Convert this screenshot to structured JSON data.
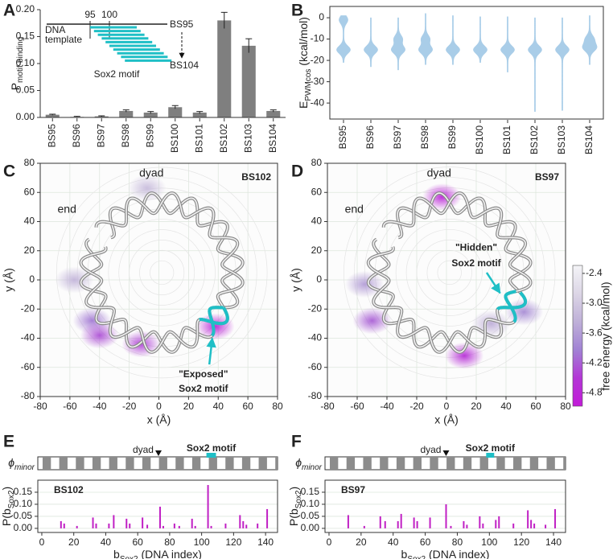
{
  "chart_data": [
    {
      "panel": "A",
      "type": "bar",
      "categories": [
        "BS95",
        "BS96",
        "BS97",
        "BS98",
        "BS99",
        "BS100",
        "BS101",
        "BS102",
        "BS103",
        "BS104"
      ],
      "values": [
        0.005,
        0.001,
        0.002,
        0.012,
        0.009,
        0.019,
        0.009,
        0.18,
        0.133,
        0.012
      ],
      "errors": [
        0.001,
        0.001,
        0.001,
        0.002,
        0.002,
        0.003,
        0.002,
        0.015,
        0.013,
        0.002
      ],
      "color": "#7f7f7f",
      "ylim": [
        0,
        0.2
      ],
      "yticks": [
        {
          "value": 0,
          "label": "0.00"
        },
        {
          "value": 0.05,
          "label": "0.05"
        },
        {
          "value": 0.1,
          "label": "0.10"
        },
        {
          "value": 0.15,
          "label": "0.15"
        },
        {
          "value": 0.2,
          "label": "0.20"
        }
      ],
      "y_label": {
        "main": "P",
        "sub": "motif-binding"
      },
      "inset": {
        "ticks": [
          95,
          100
        ],
        "template_label": [
          "DNA",
          "template"
        ],
        "start_label": "BS95",
        "end_label": "BS104",
        "motif_label": "Sox2 motif",
        "color": "#1fbfc6"
      }
    },
    {
      "panel": "B",
      "type": "violin",
      "categories": [
        "BS95",
        "BS96",
        "BS97",
        "BS98",
        "BS99",
        "BS100",
        "BS101",
        "BS102",
        "BS103",
        "BS104"
      ],
      "max": [
        1,
        0,
        0,
        2,
        1,
        0.5,
        0.5,
        0,
        0,
        1
      ],
      "min": [
        -21,
        -23,
        -24.5,
        -22,
        -22,
        -21,
        -25.5,
        -44,
        -43.5,
        -22
      ],
      "modes": [
        [
          -15,
          -1
        ],
        [
          -15
        ],
        [
          -15,
          -10
        ],
        [
          -15,
          -10
        ],
        [
          -15
        ],
        [
          -15
        ],
        [
          -15
        ],
        [
          -15
        ],
        [
          -15
        ],
        [
          -14,
          -10
        ]
      ],
      "color": "#a9cde8",
      "ylim": [
        -47.5,
        5.3
      ],
      "yticks": [
        0,
        -10,
        -20,
        -30,
        -40
      ],
      "y_label": {
        "main": "E",
        "sub": "PWMcos",
        "rest": " (kcal/mol)"
      }
    },
    {
      "panel": "C",
      "type": "heatmap",
      "label": "BS102",
      "xlim": [
        -80,
        80
      ],
      "ylim": [
        -80,
        80
      ],
      "xticks": [
        -80,
        -60,
        -40,
        -20,
        0,
        20,
        40,
        60,
        80
      ],
      "yticks": [
        -80,
        -60,
        -40,
        -20,
        0,
        20,
        40,
        60,
        80
      ],
      "grid": true,
      "x_label": "x (Å)",
      "y_label": "y (Å)",
      "hotspots": {
        "x": [
          -8,
          -45,
          -40,
          38,
          -12,
          -57
        ],
        "y": [
          63,
          -28,
          -38,
          -32,
          -44,
          0
        ],
        "values": [
          -3.2,
          -4.0,
          -4.3,
          -4.8,
          -4.4,
          -3.3
        ]
      },
      "annotations": {
        "dyad": "dyad",
        "end": "end",
        "motif": [
          "\"Exposed\"",
          "Sox2 motif"
        ]
      }
    },
    {
      "panel": "D",
      "type": "heatmap",
      "label": "BS97",
      "xlim": [
        -80,
        80
      ],
      "ylim": [
        -80,
        80
      ],
      "xticks": [
        -80,
        -60,
        -40,
        -20,
        0,
        20,
        40,
        60,
        80
      ],
      "yticks": [
        -80,
        -60,
        -40,
        -20,
        0,
        20,
        40,
        60,
        80
      ],
      "grid": true,
      "x_label": "x (Å)",
      "y_label": "y (Å)",
      "hotspots": {
        "x": [
          -3,
          -55,
          -50,
          12,
          52,
          30
        ],
        "y": [
          57,
          -3,
          -28,
          -52,
          -22,
          -30
        ],
        "values": [
          -4.8,
          -3.6,
          -4.2,
          -4.6,
          -3.8,
          -3.4
        ]
      },
      "annotations": {
        "dyad": "dyad",
        "end": "end",
        "motif": [
          "\"Hidden\"",
          "Sox2 motif"
        ]
      },
      "colorbar": {
        "label": "free energy (kcal/mol)",
        "lim": [
          -2.24,
          -5.07
        ],
        "ticks": [
          -2.4,
          {
            "value": -3.0,
            "label": "-3.0"
          },
          -3.6,
          -4.2,
          -4.8
        ],
        "colors": [
          "#f4f4f7",
          "#dcd6e6",
          "#bfb0d8",
          "#a182d4",
          "#b336d6",
          "#c21bd8"
        ]
      }
    },
    {
      "panel": "E",
      "type": "stem",
      "label": "BS102",
      "x": [
        12,
        14,
        22,
        32,
        34,
        42,
        45,
        53,
        55,
        63,
        66,
        74,
        76,
        83,
        86,
        94,
        96,
        104,
        106,
        115,
        124,
        126,
        128,
        135,
        141
      ],
      "values": [
        0.03,
        0.02,
        0.01,
        0.045,
        0.02,
        0.02,
        0.055,
        0.04,
        0.02,
        0.045,
        0.015,
        0.09,
        0.01,
        0.02,
        0.01,
        0.04,
        0.01,
        0.18,
        0.01,
        0.02,
        0.055,
        0.03,
        0.015,
        0.02,
        0.08
      ],
      "color": "#c01fc4",
      "xlim": [
        -2.5,
        147.5
      ],
      "ylim": [
        -0.017,
        0.2
      ],
      "xticks": [
        0,
        20,
        40,
        60,
        80,
        100,
        120,
        140
      ],
      "yticks": [
        {
          "value": 0,
          "label": "0.00"
        },
        {
          "value": 0.05,
          "label": "0.05"
        },
        {
          "value": 0.1,
          "label": "0.10"
        },
        {
          "value": 0.15,
          "label": "0.15"
        }
      ],
      "grid": true,
      "x_label": {
        "main": "b",
        "sub": "Sox2",
        "rest": " (DNA index)"
      },
      "y_label": {
        "main": "P(b",
        "sub": "Sox2",
        "rest": ")"
      },
      "track": {
        "label": {
          "main": "ϕ",
          "sub": "minor"
        },
        "dyad_label": "dyad",
        "dyad": 73,
        "motif_label": "Sox2 motif",
        "motif": [
          103,
          109
        ]
      }
    },
    {
      "panel": "F",
      "type": "stem",
      "label": "BS97",
      "x": [
        12,
        22,
        32,
        35,
        43,
        45,
        53,
        55,
        63,
        73,
        76,
        84,
        86,
        94,
        96,
        104,
        106,
        115,
        124,
        126,
        128,
        135,
        141
      ],
      "values": [
        0.055,
        0.01,
        0.05,
        0.03,
        0.03,
        0.06,
        0.045,
        0.03,
        0.045,
        0.1,
        0.01,
        0.03,
        0.015,
        0.05,
        0.02,
        0.035,
        0.05,
        0.02,
        0.075,
        0.035,
        0.02,
        0.015,
        0.08
      ],
      "color": "#c01fc4",
      "xlim": [
        -2.5,
        147.5
      ],
      "ylim": [
        -0.017,
        0.2
      ],
      "xticks": [
        0,
        20,
        40,
        60,
        80,
        100,
        120,
        140
      ],
      "yticks": [
        {
          "value": 0,
          "label": "0.00"
        },
        {
          "value": 0.05,
          "label": "0.05"
        },
        {
          "value": 0.1,
          "label": "0.10"
        },
        {
          "value": 0.15,
          "label": "0.15"
        }
      ],
      "grid": true,
      "x_label": {
        "main": "b",
        "sub": "Sox2",
        "rest": " (DNA index)"
      },
      "y_label": {
        "main": "P(b",
        "sub": "Sox2",
        "rest": ")"
      },
      "track": {
        "label": {
          "main": "ϕ",
          "sub": "minor"
        },
        "dyad_label": "dyad",
        "dyad": 73,
        "motif_label": "Sox2 motif",
        "motif": [
          98,
          103
        ]
      }
    }
  ]
}
